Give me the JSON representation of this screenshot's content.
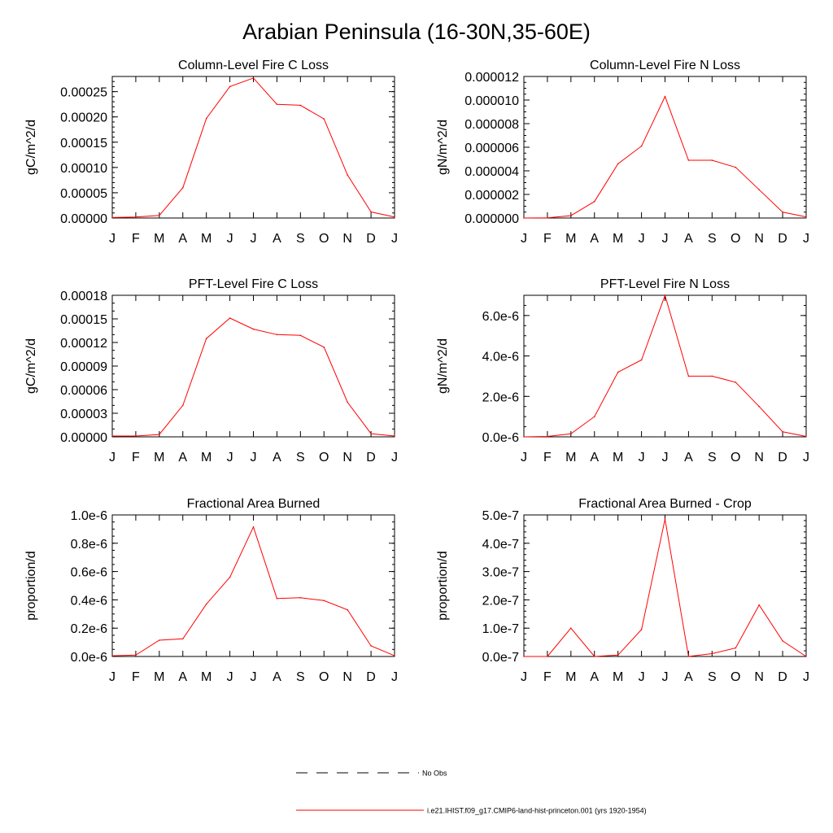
{
  "title": "Arabian Peninsula (16-30N,35-60E)",
  "legend": {
    "entries": [
      {
        "label": "No Obs",
        "style": "dashed",
        "color": "#000000"
      },
      {
        "label": "i.e21.IHIST.f09_g17.CMIP6-land-hist-princeton.001 (yrs 1920-1954)",
        "style": "solid",
        "color": "#ff0000"
      }
    ]
  },
  "colors": {
    "series": "#ff0000",
    "axis": "#000000"
  },
  "chart_data": [
    {
      "type": "line",
      "title": "Column-Level Fire C Loss",
      "ylabel": "gC/m^2/d",
      "x": [
        "J",
        "F",
        "M",
        "A",
        "M",
        "J",
        "J",
        "A",
        "S",
        "O",
        "N",
        "D",
        "J"
      ],
      "ylim": [
        0,
        0.00028
      ],
      "yticks": [
        0,
        5e-05,
        0.0001,
        0.00015,
        0.0002,
        0.00025
      ],
      "ytick_labels": [
        "0.00000",
        "0.00005",
        "0.00010",
        "0.00015",
        "0.00020",
        "0.00025"
      ],
      "ymajor": 5e-05,
      "yminor": 1e-05,
      "series": [
        {
          "color": "#ff0000",
          "values": [
            1e-06,
            2e-06,
            5e-06,
            6e-05,
            0.000197,
            0.00026,
            0.000277,
            0.000225,
            0.000223,
            0.000196,
            8.5e-05,
            1.2e-05,
            2e-06
          ]
        }
      ]
    },
    {
      "type": "line",
      "title": "Column-Level Fire N Loss",
      "ylabel": "gN/m^2/d",
      "x": [
        "J",
        "F",
        "M",
        "A",
        "M",
        "J",
        "J",
        "A",
        "S",
        "O",
        "N",
        "D",
        "J"
      ],
      "ylim": [
        0,
        1.2e-05
      ],
      "yticks": [
        0,
        2e-06,
        4e-06,
        6e-06,
        8e-06,
        1e-05,
        1.2e-05
      ],
      "ytick_labels": [
        "0.000000",
        "0.000002",
        "0.000004",
        "0.000006",
        "0.000008",
        "0.000010",
        "0.000012"
      ],
      "ymajor": 2e-06,
      "yminor": 5e-07,
      "series": [
        {
          "color": "#ff0000",
          "values": [
            0.0,
            2e-08,
            2e-07,
            1.4e-06,
            4.6e-06,
            6.1e-06,
            1.03e-05,
            4.9e-06,
            4.9e-06,
            4.3e-06,
            2.4e-06,
            5e-07,
            1e-07
          ]
        }
      ]
    },
    {
      "type": "line",
      "title": "PFT-Level Fire C Loss",
      "ylabel": "gC/m^2/d",
      "x": [
        "J",
        "F",
        "M",
        "A",
        "M",
        "J",
        "J",
        "A",
        "S",
        "O",
        "N",
        "D",
        "J"
      ],
      "ylim": [
        0,
        0.00018
      ],
      "yticks": [
        0,
        3e-05,
        6e-05,
        9e-05,
        0.00012,
        0.00015,
        0.00018
      ],
      "ytick_labels": [
        "0.00000",
        "0.00003",
        "0.00006",
        "0.00009",
        "0.00012",
        "0.00015",
        "0.00018"
      ],
      "ymajor": 3e-05,
      "yminor": 1e-05,
      "series": [
        {
          "color": "#ff0000",
          "values": [
            1e-06,
            1e-06,
            3e-06,
            4e-05,
            0.000125,
            0.000151,
            0.000137,
            0.00013,
            0.000129,
            0.000114,
            4.4e-05,
            4e-06,
            1e-06
          ]
        }
      ]
    },
    {
      "type": "line",
      "title": "PFT-Level Fire N Loss",
      "ylabel": "gN/m^2/d",
      "x": [
        "J",
        "F",
        "M",
        "A",
        "M",
        "J",
        "J",
        "A",
        "S",
        "O",
        "N",
        "D",
        "J"
      ],
      "ylim": [
        0,
        7e-06
      ],
      "yticks": [
        0,
        2e-06,
        4e-06,
        6e-06
      ],
      "ytick_labels": [
        "0.0e-6",
        "2.0e-6",
        "4.0e-6",
        "6.0e-6"
      ],
      "ymajor": 2e-06,
      "yminor": 5e-07,
      "series": [
        {
          "color": "#ff0000",
          "values": [
            0.0,
            2e-08,
            1.5e-07,
            1e-06,
            3.2e-06,
            3.8e-06,
            7e-06,
            3e-06,
            3e-06,
            2.7e-06,
            1.5e-06,
            2.5e-07,
            2e-08
          ]
        }
      ]
    },
    {
      "type": "line",
      "title": "Fractional Area Burned",
      "ylabel": "proportion/d",
      "x": [
        "J",
        "F",
        "M",
        "A",
        "M",
        "J",
        "J",
        "A",
        "S",
        "O",
        "N",
        "D",
        "J"
      ],
      "ylim": [
        0,
        1e-06
      ],
      "yticks": [
        0,
        2e-07,
        4e-07,
        6e-07,
        8e-07,
        1e-06
      ],
      "ytick_labels": [
        "0.0e-6",
        "0.2e-6",
        "0.4e-6",
        "0.6e-6",
        "0.8e-6",
        "1.0e-6"
      ],
      "ymajor": 2e-07,
      "yminor": 5e-08,
      "series": [
        {
          "color": "#ff0000",
          "values": [
            5e-09,
            1e-08,
            1.15e-07,
            1.25e-07,
            3.7e-07,
            5.6e-07,
            9.15e-07,
            4.1e-07,
            4.15e-07,
            3.95e-07,
            3.3e-07,
            7.5e-08,
            5e-09
          ]
        }
      ]
    },
    {
      "type": "line",
      "title": "Fractional Area Burned - Crop",
      "ylabel": "proportion/d",
      "x": [
        "J",
        "F",
        "M",
        "A",
        "M",
        "J",
        "J",
        "A",
        "S",
        "O",
        "N",
        "D",
        "J"
      ],
      "ylim": [
        0,
        5e-07
      ],
      "yticks": [
        0,
        1e-07,
        2e-07,
        3e-07,
        4e-07,
        5e-07
      ],
      "ytick_labels": [
        "0.0e-7",
        "1.0e-7",
        "2.0e-7",
        "3.0e-7",
        "4.0e-7",
        "5.0e-7"
      ],
      "ymajor": 1e-07,
      "yminor": 2e-08,
      "series": [
        {
          "color": "#ff0000",
          "values": [
            0.0,
            0.0,
            1e-07,
            0.0,
            5e-09,
            9.5e-08,
            4.85e-07,
            0.0,
            1e-08,
            3e-08,
            1.82e-07,
            5.5e-08,
            0.0
          ]
        }
      ]
    }
  ]
}
